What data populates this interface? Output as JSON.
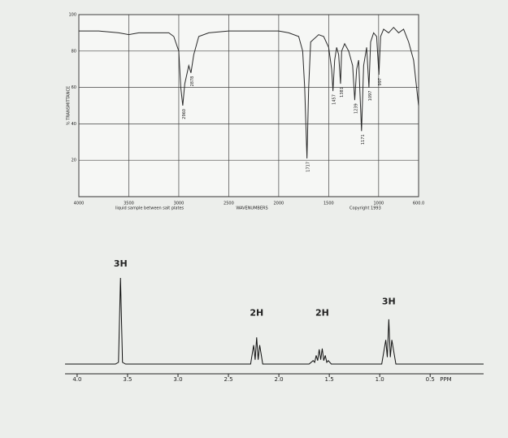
{
  "chart_data": [
    {
      "type": "line",
      "y_label": "% TRANSMITTANCE",
      "x_label": "WAVENUMBERS",
      "note": "liquid sample between salt plates",
      "copyright": "Copyright 1993",
      "xlim": [
        4000,
        600
      ],
      "ylim": [
        0,
        100
      ],
      "xticks": [
        4000,
        3500,
        3000,
        2500,
        2000,
        1500,
        1000,
        {
          "value": 600,
          "label": "600.0"
        }
      ],
      "yticks": [
        20,
        40,
        60,
        80,
        100
      ],
      "grid": true,
      "color": "#2a2a2a",
      "x": [
        4000,
        3800,
        3600,
        3500,
        3400,
        3200,
        3100,
        3050,
        3000,
        2980,
        2960,
        2940,
        2900,
        2878,
        2850,
        2800,
        2700,
        2500,
        2200,
        2000,
        1900,
        1800,
        1760,
        1740,
        1717,
        1700,
        1680,
        1600,
        1550,
        1500,
        1470,
        1457,
        1440,
        1420,
        1400,
        1381,
        1370,
        1340,
        1300,
        1260,
        1239,
        1220,
        1200,
        1171,
        1150,
        1120,
        1097,
        1080,
        1050,
        1020,
        997,
        980,
        950,
        900,
        850,
        800,
        750,
        700,
        650,
        600
      ],
      "values": [
        91,
        91,
        90,
        89,
        90,
        90,
        90,
        88,
        80,
        60,
        50,
        62,
        72,
        68,
        78,
        88,
        90,
        91,
        91,
        91,
        90,
        88,
        80,
        60,
        21,
        60,
        85,
        89,
        88,
        82,
        70,
        58,
        75,
        82,
        78,
        62,
        80,
        84,
        80,
        72,
        53,
        70,
        75,
        36,
        72,
        82,
        60,
        85,
        90,
        88,
        67,
        88,
        92,
        90,
        93,
        90,
        92,
        85,
        75,
        50
      ],
      "peak_labels": [
        2960,
        2878,
        1717,
        1457,
        1381,
        1239,
        1171,
        1097,
        997
      ]
    },
    {
      "type": "line",
      "x_label": "PPM",
      "xlim": [
        4.12,
        -0.03
      ],
      "ylim": [
        0,
        125
      ],
      "xticks": [
        {
          "value": 4,
          "label": "4.0"
        },
        3.5,
        {
          "value": 3,
          "label": "3.0"
        },
        2.5,
        {
          "value": 2,
          "label": "2.0"
        },
        1.5,
        {
          "value": 1,
          "label": "1.0"
        },
        0.5
      ],
      "color": "#111111",
      "x": [
        4.12,
        3.62,
        3.59,
        3.57,
        3.55,
        3.52,
        2.28,
        2.25,
        2.235,
        2.22,
        2.205,
        2.19,
        2.16,
        1.7,
        1.66,
        1.645,
        1.63,
        1.615,
        1.6,
        1.585,
        1.57,
        1.555,
        1.54,
        1.525,
        1.51,
        1.48,
        0.98,
        0.94,
        0.925,
        0.91,
        0.895,
        0.88,
        0.84,
        -0.03
      ],
      "values": [
        0,
        0,
        2,
        100,
        2,
        0,
        0,
        22,
        5,
        31,
        5,
        22,
        0,
        0,
        4,
        2,
        10,
        4,
        17,
        5,
        18,
        4,
        10,
        2,
        4,
        0,
        0,
        28,
        8,
        52,
        8,
        28,
        0,
        0
      ],
      "annotations": [
        {
          "text": "3H",
          "x": 3.57,
          "y": 116
        },
        {
          "text": "2H",
          "x": 2.22,
          "y": 59
        },
        {
          "text": "2H",
          "x": 1.57,
          "y": 59
        },
        {
          "text": "3H",
          "x": 0.91,
          "y": 72
        }
      ]
    }
  ]
}
